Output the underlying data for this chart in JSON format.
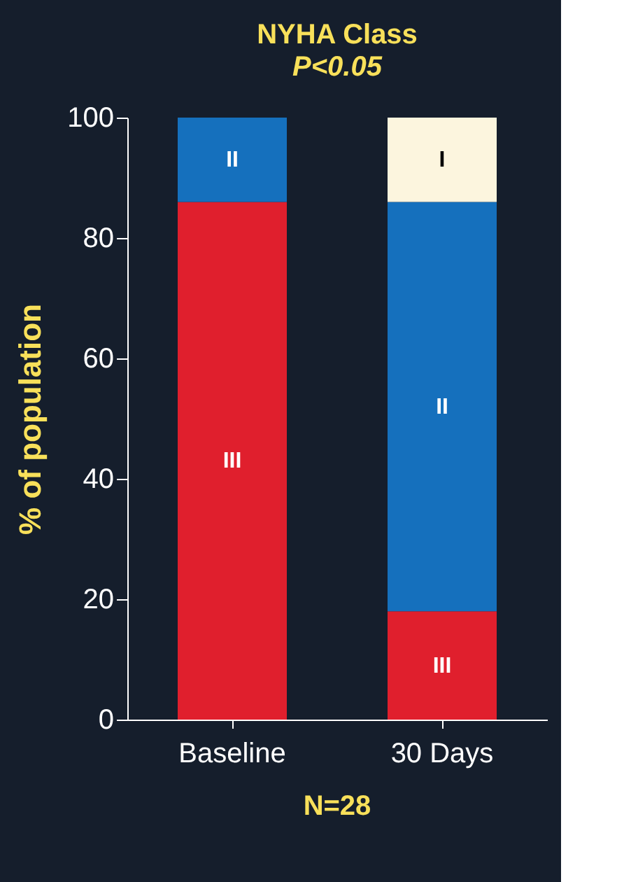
{
  "chart_data": {
    "type": "bar",
    "title": "NYHA Class",
    "subtitle": "P<0.05",
    "ylabel": "% of population",
    "categories": [
      "Baseline",
      "30 Days"
    ],
    "stacked": true,
    "grid": false,
    "series": [
      {
        "name": "III",
        "color": "#e01f2d",
        "values": [
          86,
          18
        ]
      },
      {
        "name": "II",
        "color": "#1570bd",
        "values": [
          14,
          68
        ]
      },
      {
        "name": "I",
        "color": "#fcf5de",
        "values": [
          null,
          14
        ]
      }
    ],
    "ylim": [
      0,
      100
    ],
    "yticks": [
      0,
      20,
      40,
      60,
      80,
      100
    ],
    "annotations": [
      "N=28"
    ]
  }
}
